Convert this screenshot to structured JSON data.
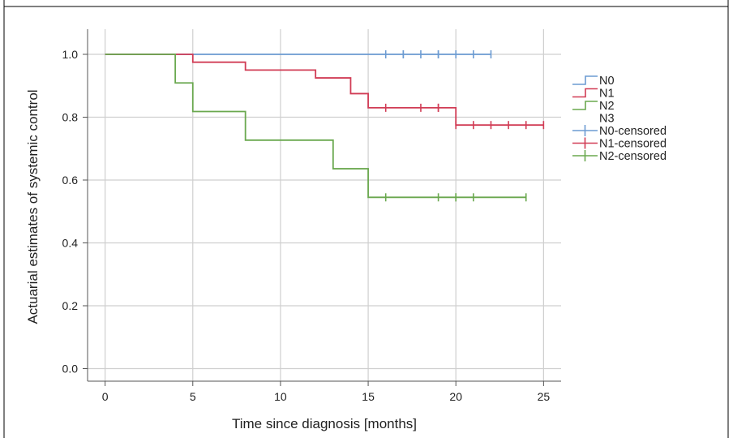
{
  "chart_data": {
    "type": "line",
    "step": true,
    "xlabel": "Time since diagnosis [months]",
    "ylabel": "Actuarial estimates of systemic control",
    "xlim": [
      -1,
      26
    ],
    "ylim": [
      -0.04,
      1.08
    ],
    "xticks": [
      0,
      5,
      10,
      15,
      20,
      25
    ],
    "yticks": [
      0.0,
      0.2,
      0.4,
      0.6,
      0.8,
      1.0
    ],
    "ytick_labels": [
      "0.0",
      "0.2",
      "0.4",
      "0.6",
      "0.8",
      "1.0"
    ],
    "grid": true,
    "legend_position": "right",
    "series": [
      {
        "name": "N0",
        "color": "#6c9bd2",
        "steps": [
          [
            0,
            1.0
          ],
          [
            22,
            1.0
          ]
        ],
        "censored": [
          16,
          17,
          17,
          18,
          19,
          19,
          20,
          21,
          22
        ]
      },
      {
        "name": "N1",
        "color": "#d13c55",
        "steps": [
          [
            0,
            1.0
          ],
          [
            5,
            0.975
          ],
          [
            8,
            0.95
          ],
          [
            12,
            0.925
          ],
          [
            14,
            0.875
          ],
          [
            15,
            0.83
          ],
          [
            20,
            0.775
          ],
          [
            25,
            0.775
          ]
        ],
        "censored": [
          16,
          18,
          19,
          19,
          20,
          21,
          22,
          23,
          24,
          25
        ]
      },
      {
        "name": "N2",
        "color": "#6aa84f",
        "steps": [
          [
            0,
            1.0
          ],
          [
            4,
            0.909
          ],
          [
            5,
            0.818
          ],
          [
            8,
            0.727
          ],
          [
            13,
            0.636
          ],
          [
            15,
            0.545
          ],
          [
            24,
            0.545
          ]
        ],
        "censored": [
          16,
          19,
          20,
          20,
          21,
          24
        ]
      }
    ],
    "legend": [
      {
        "label": "N0",
        "color": "#6c9bd2",
        "kind": "step"
      },
      {
        "label": "N1",
        "color": "#d13c55",
        "kind": "step"
      },
      {
        "label": "N2",
        "color": "#6aa84f",
        "kind": "step"
      },
      {
        "label": "N3",
        "color": "#6c9bd2",
        "kind": "none"
      },
      {
        "label": "N0-censored",
        "color": "#6c9bd2",
        "kind": "cross"
      },
      {
        "label": "N1-censored",
        "color": "#d13c55",
        "kind": "cross"
      },
      {
        "label": "N2-censored",
        "color": "#6aa84f",
        "kind": "cross"
      }
    ]
  }
}
